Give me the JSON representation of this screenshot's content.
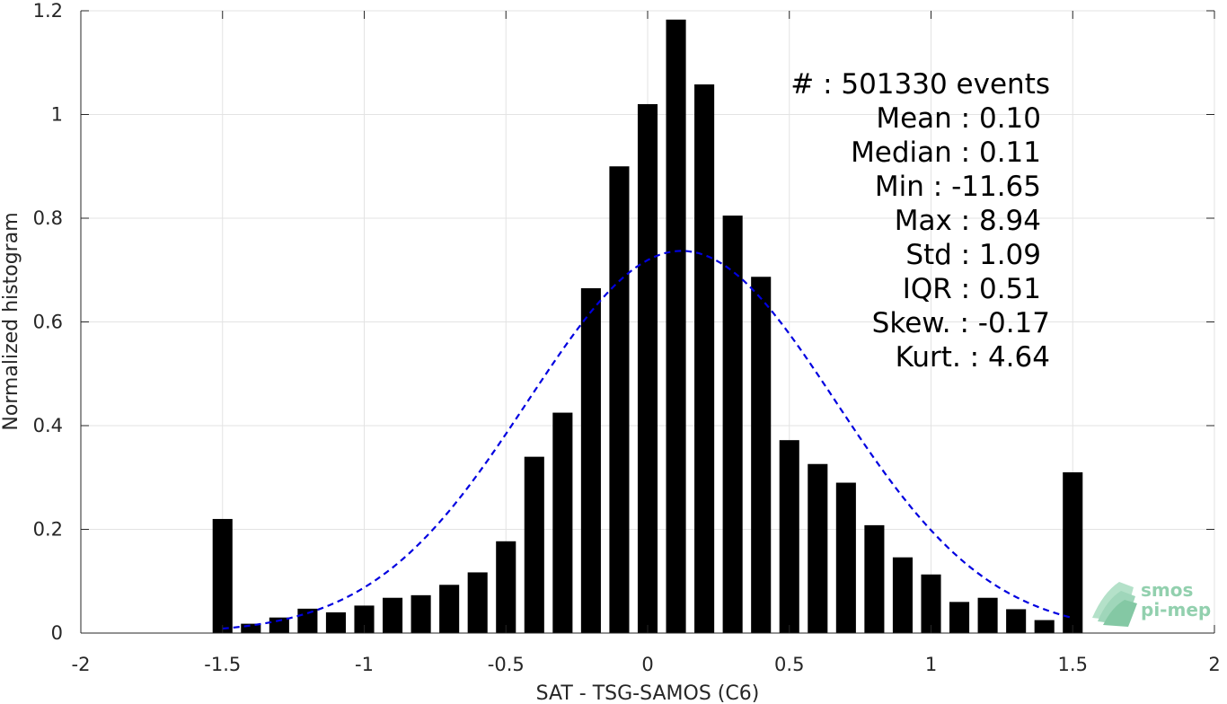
{
  "chart_data": {
    "type": "bar",
    "xlabel": "SAT - TSG-SAMOS (C6)",
    "ylabel": "Normalized histogram",
    "xlim": [
      -2,
      2
    ],
    "ylim": [
      0,
      1.2
    ],
    "xticks": [
      "-2",
      "-1.5",
      "-1",
      "-0.5",
      "0",
      "0.5",
      "1",
      "1.5",
      "2"
    ],
    "yticks": [
      "0",
      "0.2",
      "0.4",
      "0.6",
      "0.8",
      "1",
      "1.2"
    ],
    "grid": true,
    "bar_color": "#000000",
    "bar_width": 0.07,
    "bins": [
      {
        "x": -1.5,
        "y": 0.22
      },
      {
        "x": -1.4,
        "y": 0.018
      },
      {
        "x": -1.3,
        "y": 0.03
      },
      {
        "x": -1.2,
        "y": 0.047
      },
      {
        "x": -1.1,
        "y": 0.04
      },
      {
        "x": -1.0,
        "y": 0.053
      },
      {
        "x": -0.9,
        "y": 0.068
      },
      {
        "x": -0.8,
        "y": 0.073
      },
      {
        "x": -0.7,
        "y": 0.093
      },
      {
        "x": -0.6,
        "y": 0.117
      },
      {
        "x": -0.5,
        "y": 0.177
      },
      {
        "x": -0.4,
        "y": 0.34
      },
      {
        "x": -0.3,
        "y": 0.425
      },
      {
        "x": -0.2,
        "y": 0.665
      },
      {
        "x": -0.1,
        "y": 0.9
      },
      {
        "x": 0.0,
        "y": 1.02
      },
      {
        "x": 0.1,
        "y": 1.183
      },
      {
        "x": 0.2,
        "y": 1.058
      },
      {
        "x": 0.3,
        "y": 0.805
      },
      {
        "x": 0.4,
        "y": 0.687
      },
      {
        "x": 0.5,
        "y": 0.372
      },
      {
        "x": 0.6,
        "y": 0.326
      },
      {
        "x": 0.7,
        "y": 0.29
      },
      {
        "x": 0.8,
        "y": 0.208
      },
      {
        "x": 0.9,
        "y": 0.146
      },
      {
        "x": 1.0,
        "y": 0.113
      },
      {
        "x": 1.1,
        "y": 0.06
      },
      {
        "x": 1.2,
        "y": 0.068
      },
      {
        "x": 1.3,
        "y": 0.046
      },
      {
        "x": 1.4,
        "y": 0.025
      },
      {
        "x": 1.5,
        "y": 0.31
      }
    ],
    "fit_curve": {
      "style": "dashed",
      "color": "#0000e0",
      "x_range": [
        -1.5,
        1.5
      ],
      "peak": 0.737,
      "peak_x": 0.12
    },
    "stats": [
      {
        "label": "#  : 501330 events"
      },
      {
        "label": "Mean : 0.10"
      },
      {
        "label": "Median : 0.11"
      },
      {
        "label": "Min : -11.65"
      },
      {
        "label": "Max : 8.94"
      },
      {
        "label": "Std : 1.09"
      },
      {
        "label": "IQR : 0.51"
      },
      {
        "label": "Skew. : -0.17"
      },
      {
        "label": "Kurt. : 4.64"
      }
    ]
  },
  "logo": {
    "line1": "smos",
    "line2": "pi-mep"
  }
}
